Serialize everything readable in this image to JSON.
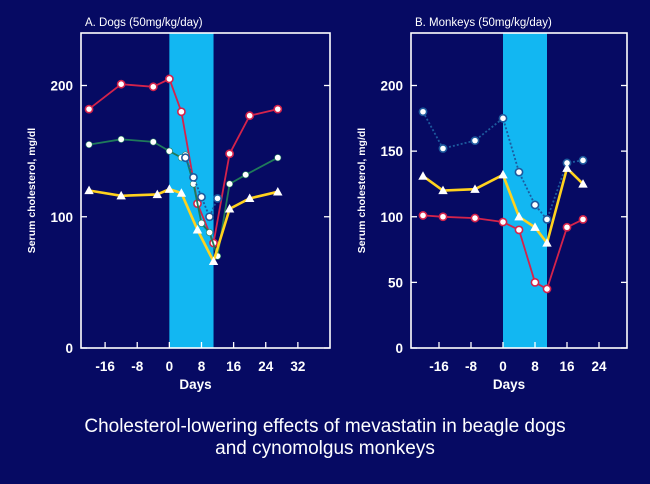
{
  "caption": {
    "line1": "Cholesterol-lowering effects of mevastatin in beagle dogs",
    "line2": "and cynomolgus monkeys"
  },
  "colors": {
    "background": "#060a63",
    "axis": "#ffffff",
    "treatment_band": "#12b7f2",
    "red_series": "#d4234b",
    "green_series": "#1f7a5a",
    "blue_series": "#1d5a9e",
    "yellow_series": "#ffd21e"
  },
  "chart_data": [
    {
      "type": "line",
      "title": "A. Dogs (50mg/kg/day)",
      "xlabel": "Days",
      "ylabel": "Serum cholesterol, mg/dl",
      "xlim": [
        -22,
        40
      ],
      "ylim": [
        0,
        240
      ],
      "xticks": [
        -16,
        -8,
        0,
        8,
        16,
        24,
        32
      ],
      "xtick_labels": [
        "-16",
        "-8",
        "0",
        "8",
        "16",
        "24",
        "32"
      ],
      "yticks": [
        0,
        100,
        200
      ],
      "ytick_labels": [
        "0",
        "100",
        "200"
      ],
      "treatment_period": [
        0,
        11
      ],
      "grid": false,
      "series": [
        {
          "color": "#d4234b",
          "marker": "open-circle",
          "x": [
            -20,
            -12,
            -4,
            0,
            3,
            7,
            11,
            15,
            20,
            27
          ],
          "y": [
            182,
            201,
            199,
            205,
            180,
            110,
            80,
            148,
            177,
            182
          ]
        },
        {
          "color": "#1f7a5a",
          "marker": "filled-circle",
          "x": [
            -20,
            -12,
            -4,
            0,
            3,
            4,
            6,
            8,
            10,
            12,
            15,
            19,
            27
          ],
          "y": [
            155,
            159,
            157,
            150,
            145,
            147,
            125,
            95,
            88,
            70,
            125,
            132,
            145
          ]
        },
        {
          "color": "#1d5a9e",
          "marker": "open-circle",
          "x": [
            4,
            6,
            8,
            10,
            12
          ],
          "y": [
            145,
            130,
            115,
            100,
            114
          ]
        },
        {
          "color": "#ffd21e",
          "marker": "triangle",
          "x": [
            -20,
            -12,
            -3,
            0,
            3,
            7,
            11,
            15,
            20,
            27
          ],
          "y": [
            120,
            116,
            117,
            121,
            118,
            90,
            66,
            106,
            114,
            119
          ]
        }
      ]
    },
    {
      "type": "line",
      "title": "B. Monkeys (50mg/kg/day)",
      "xlabel": "Days",
      "ylabel": "Serum cholesterol, mg/dl",
      "xlim": [
        -23,
        31
      ],
      "ylim": [
        0,
        240
      ],
      "xticks": [
        -16,
        -8,
        0,
        8,
        16,
        24
      ],
      "xtick_labels": [
        "-16",
        "-8",
        "0",
        "8",
        "16",
        "24"
      ],
      "yticks": [
        0,
        50,
        100,
        150,
        200
      ],
      "ytick_labels": [
        "0",
        "50",
        "100",
        "150",
        "200"
      ],
      "treatment_period": [
        0,
        11
      ],
      "grid": false,
      "series": [
        {
          "color": "#1d5a9e",
          "marker": "open-circle",
          "x": [
            -20,
            -15,
            -7,
            0,
            4,
            8,
            11,
            16,
            20
          ],
          "y": [
            180,
            152,
            158,
            175,
            134,
            109,
            98,
            141,
            143
          ]
        },
        {
          "color": "#d4234b",
          "marker": "open-circle",
          "x": [
            -20,
            -15,
            -7,
            0,
            4,
            8,
            11,
            16,
            20
          ],
          "y": [
            101,
            100,
            99,
            96,
            90,
            50,
            45,
            92,
            98
          ]
        },
        {
          "color": "#ffd21e",
          "marker": "triangle",
          "x": [
            -20,
            -15,
            -7,
            0,
            4,
            8,
            11,
            16,
            20
          ],
          "y": [
            131,
            120,
            121,
            132,
            100,
            92,
            80,
            137,
            125
          ]
        }
      ]
    }
  ]
}
